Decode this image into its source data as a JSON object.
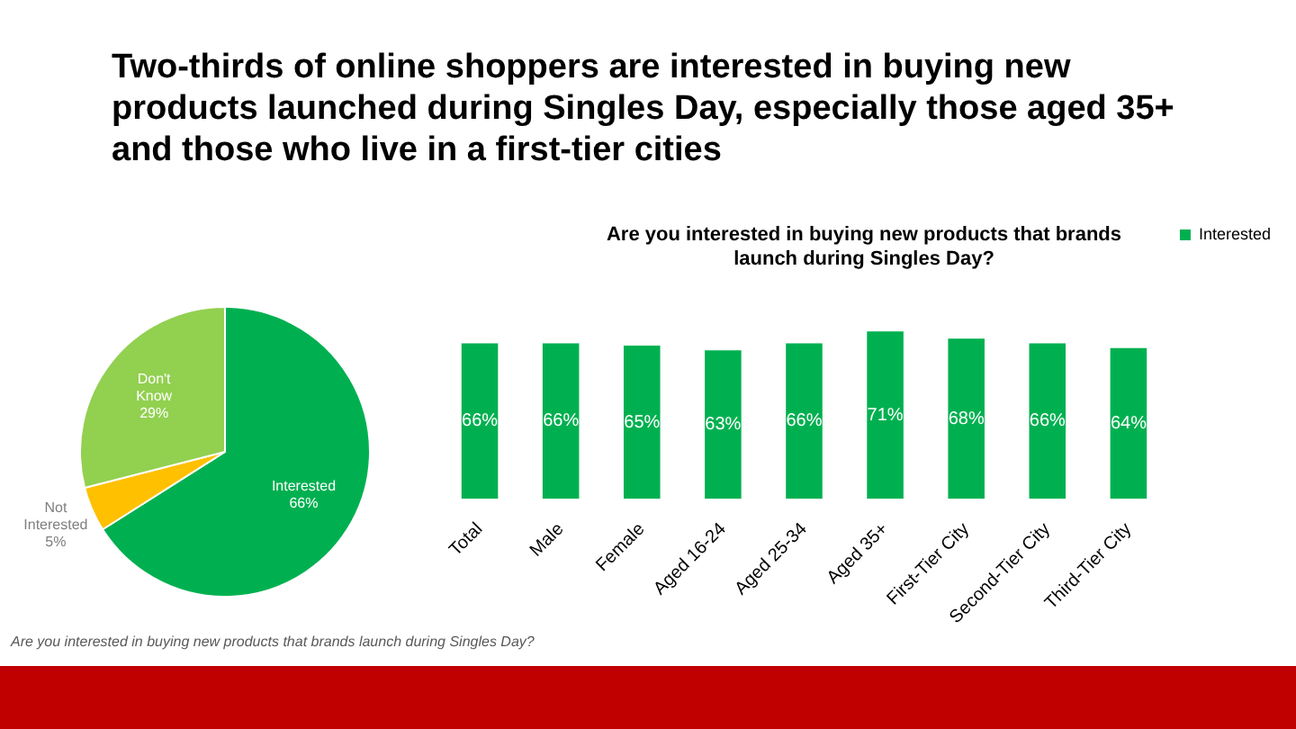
{
  "chart_data": [
    {
      "type": "pie",
      "title": "Two-thirds of online shoppers are interested in buying new products launched during Singles Day, especially those aged 35+ and those who live in a first-tier cities",
      "categories": [
        "Interested",
        "Not Interested",
        "Don't Know"
      ],
      "values": [
        66,
        5,
        29
      ],
      "colors": [
        "#00b050",
        "#ffc000",
        "#92d050"
      ],
      "value_labels": [
        "66%",
        "5%",
        "29%"
      ],
      "annotations": [
        "Are you interested in buying new products that brands launch during Singles Day?"
      ]
    },
    {
      "type": "bar",
      "title": "Are you interested in buying new products that brands launch during Singles Day?",
      "categories": [
        "Total",
        "Male",
        "Female",
        "Aged 16-24",
        "Aged 25-34",
        "Aged 35+",
        "First-Tier City",
        "Second-Tier City",
        "Third-Tier City"
      ],
      "series": [
        {
          "name": "Interested",
          "color": "#00b050",
          "values": [
            66,
            66,
            65,
            63,
            66,
            71,
            68,
            66,
            64
          ],
          "value_labels": [
            "66%",
            "66%",
            "65%",
            "63%",
            "66%",
            "71%",
            "68%",
            "66%",
            "64%"
          ]
        }
      ],
      "legend": "top right"
    }
  ]
}
